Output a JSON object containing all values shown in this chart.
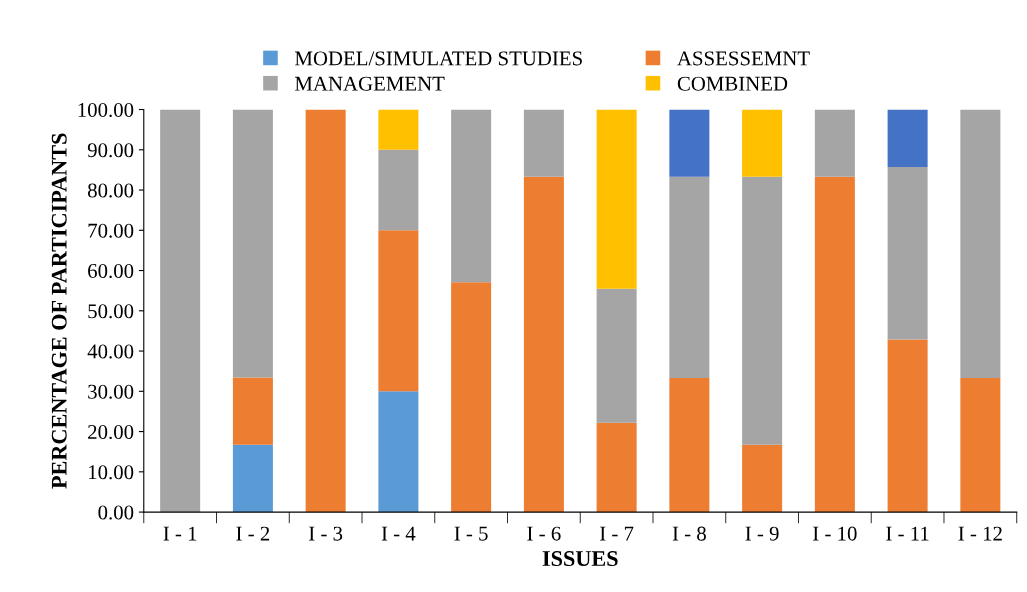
{
  "chart_data": {
    "type": "bar",
    "stacked": true,
    "xlabel": "ISSUES",
    "ylabel": "PERCENTAGE OF PARTICIPANTS",
    "categories": [
      "I - 1",
      "I - 2",
      "I - 3",
      "I - 4",
      "I - 5",
      "I - 6",
      "I - 7",
      "I - 8",
      "I - 9",
      "I - 10",
      "I - 11",
      "I - 12"
    ],
    "series": [
      {
        "name": "MODEL/SIMULATED STUDIES",
        "color": "#5b9bd5",
        "values": [
          0,
          16.7,
          0,
          30,
          0,
          0,
          0,
          0,
          0,
          0,
          0,
          0
        ]
      },
      {
        "name": "ASSESSEMNT",
        "color": "#ed7d31",
        "values": [
          0,
          16.7,
          100,
          40,
          57.1,
          83.3,
          22.2,
          33.3,
          16.7,
          83.3,
          42.9,
          33.3
        ]
      },
      {
        "name": "MANAGEMENT",
        "color": "#a5a5a5",
        "values": [
          100,
          66.6,
          0,
          20,
          42.9,
          16.7,
          33.3,
          50,
          66.6,
          16.7,
          42.8,
          66.7
        ]
      },
      {
        "name": "COMBINED",
        "color": "#ffc000",
        "values": [
          0,
          0,
          0,
          10,
          0,
          0,
          44.5,
          0,
          16.7,
          0,
          0,
          0
        ]
      },
      {
        "color": "#4472c4",
        "values": [
          0,
          0,
          0,
          0,
          0,
          0,
          0,
          16.7,
          0,
          0,
          14.3,
          0
        ]
      }
    ],
    "ylim": [
      0,
      100
    ],
    "yticks": [
      {
        "value": 0,
        "label": "0.00"
      },
      {
        "value": 10,
        "label": "10.00"
      },
      {
        "value": 20,
        "label": "20.00"
      },
      {
        "value": 30,
        "label": "30.00"
      },
      {
        "value": 40,
        "label": "40.00"
      },
      {
        "value": 50,
        "label": "50.00"
      },
      {
        "value": 60,
        "label": "60.00"
      },
      {
        "value": 70,
        "label": "70.00"
      },
      {
        "value": 80,
        "label": "80.00"
      },
      {
        "value": 90,
        "label": "90.00"
      },
      {
        "value": 100,
        "label": "100.00"
      }
    ],
    "legend": "top",
    "grid": false
  }
}
